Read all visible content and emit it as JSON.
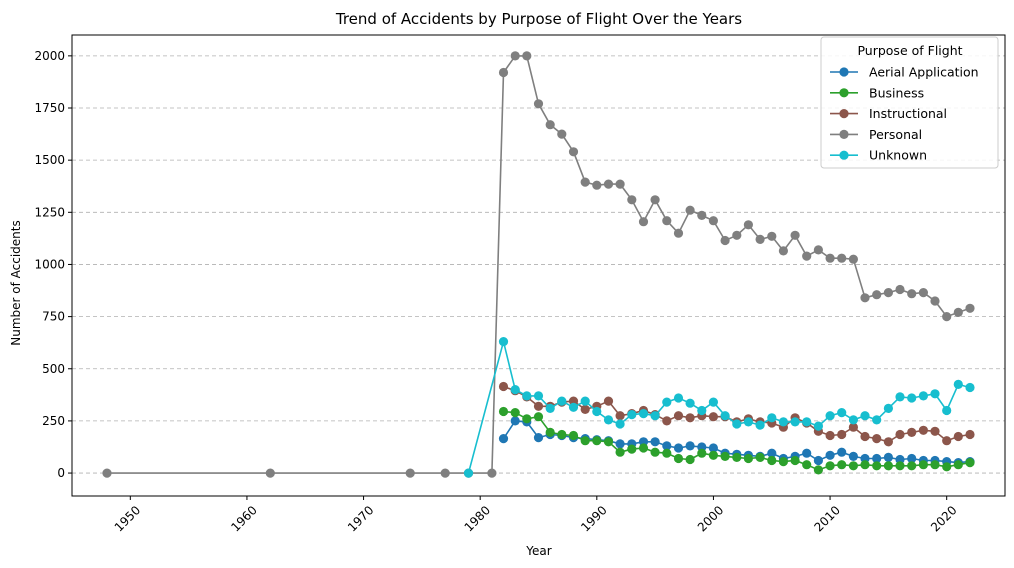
{
  "chart_data": {
    "type": "line",
    "title": "Trend of Accidents by Purpose of Flight Over the Years",
    "xlabel": "Year",
    "ylabel": "Number of Accidents",
    "xlim": [
      1945,
      2025
    ],
    "ylim": [
      -110,
      2100
    ],
    "x_ticks": [
      1950,
      1960,
      1970,
      1980,
      1990,
      2000,
      2010,
      2020
    ],
    "y_ticks": [
      0,
      250,
      500,
      750,
      1000,
      1250,
      1500,
      1750,
      2000
    ],
    "grid": "y-dashed",
    "legend": {
      "title": "Purpose of Flight",
      "placement": "top-right"
    },
    "series": [
      {
        "name": "Aerial Application",
        "color": "#1f77b4",
        "x": [
          1982,
          1983,
          1984,
          1985,
          1986,
          1987,
          1988,
          1989,
          1990,
          1991,
          1992,
          1993,
          1994,
          1995,
          1996,
          1997,
          1998,
          1999,
          2000,
          2001,
          2002,
          2003,
          2004,
          2005,
          2006,
          2007,
          2008,
          2009,
          2010,
          2011,
          2012,
          2013,
          2014,
          2015,
          2016,
          2017,
          2018,
          2019,
          2020,
          2021,
          2022
        ],
        "y": [
          165,
          250,
          245,
          170,
          185,
          180,
          170,
          165,
          160,
          155,
          140,
          140,
          150,
          150,
          130,
          120,
          130,
          125,
          120,
          95,
          90,
          85,
          80,
          95,
          70,
          80,
          95,
          60,
          85,
          100,
          80,
          70,
          70,
          75,
          65,
          70,
          60,
          60,
          55,
          50,
          55
        ]
      },
      {
        "name": "Business",
        "color": "#2ca02c",
        "x": [
          1982,
          1983,
          1984,
          1985,
          1986,
          1987,
          1988,
          1989,
          1990,
          1991,
          1992,
          1993,
          1994,
          1995,
          1996,
          1997,
          1998,
          1999,
          2000,
          2001,
          2002,
          2003,
          2004,
          2005,
          2006,
          2007,
          2008,
          2009,
          2010,
          2011,
          2012,
          2013,
          2014,
          2015,
          2016,
          2017,
          2018,
          2019,
          2020,
          2021,
          2022
        ],
        "y": [
          295,
          290,
          260,
          270,
          195,
          185,
          180,
          155,
          155,
          150,
          100,
          115,
          120,
          100,
          95,
          70,
          65,
          95,
          85,
          80,
          75,
          70,
          75,
          60,
          55,
          60,
          40,
          15,
          35,
          40,
          35,
          40,
          35,
          35,
          35,
          35,
          40,
          40,
          30,
          40,
          50
        ]
      },
      {
        "name": "Instructional",
        "color": "#8c564b",
        "x": [
          1982,
          1983,
          1984,
          1985,
          1986,
          1987,
          1988,
          1989,
          1990,
          1991,
          1992,
          1993,
          1994,
          1995,
          1996,
          1997,
          1998,
          1999,
          2000,
          2001,
          2002,
          2003,
          2004,
          2005,
          2006,
          2007,
          2008,
          2009,
          2010,
          2011,
          2012,
          2013,
          2014,
          2015,
          2016,
          2017,
          2018,
          2019,
          2020,
          2021,
          2022
        ],
        "y": [
          415,
          395,
          365,
          320,
          320,
          340,
          345,
          305,
          320,
          345,
          275,
          285,
          300,
          280,
          250,
          275,
          265,
          275,
          270,
          270,
          245,
          260,
          245,
          240,
          220,
          265,
          240,
          200,
          180,
          185,
          220,
          175,
          165,
          150,
          185,
          195,
          205,
          200,
          155,
          175,
          185
        ]
      },
      {
        "name": "Personal",
        "color": "#7f7f7f",
        "x": [
          1948,
          1962,
          1974,
          1977,
          1979,
          1981,
          1982,
          1983,
          1984,
          1985,
          1986,
          1987,
          1988,
          1989,
          1990,
          1991,
          1992,
          1993,
          1994,
          1995,
          1996,
          1997,
          1998,
          1999,
          2000,
          2001,
          2002,
          2003,
          2004,
          2005,
          2006,
          2007,
          2008,
          2009,
          2010,
          2011,
          2012,
          2013,
          2014,
          2015,
          2016,
          2017,
          2018,
          2019,
          2020,
          2021,
          2022
        ],
        "y": [
          0,
          0,
          0,
          0,
          0,
          0,
          1920,
          2000,
          2000,
          1770,
          1670,
          1625,
          1540,
          1395,
          1380,
          1385,
          1385,
          1310,
          1205,
          1310,
          1210,
          1150,
          1260,
          1235,
          1210,
          1115,
          1140,
          1190,
          1120,
          1135,
          1065,
          1140,
          1040,
          1070,
          1030,
          1030,
          1025,
          840,
          855,
          865,
          880,
          860,
          865,
          825,
          750,
          770,
          790
        ]
      },
      {
        "name": "Unknown",
        "color": "#17becf",
        "x": [
          1979,
          1982,
          1983,
          1984,
          1985,
          1986,
          1987,
          1988,
          1989,
          1990,
          1991,
          1992,
          1993,
          1994,
          1995,
          1996,
          1997,
          1998,
          1999,
          2000,
          2001,
          2002,
          2003,
          2004,
          2005,
          2006,
          2007,
          2008,
          2009,
          2010,
          2011,
          2012,
          2013,
          2014,
          2015,
          2016,
          2017,
          2018,
          2019,
          2020,
          2021,
          2022
        ],
        "y": [
          0,
          630,
          400,
          370,
          370,
          310,
          345,
          315,
          345,
          295,
          255,
          235,
          280,
          285,
          275,
          340,
          360,
          335,
          300,
          340,
          275,
          235,
          245,
          230,
          265,
          245,
          245,
          245,
          225,
          275,
          290,
          255,
          275,
          255,
          310,
          365,
          360,
          370,
          380,
          300,
          425,
          410
        ]
      }
    ]
  }
}
